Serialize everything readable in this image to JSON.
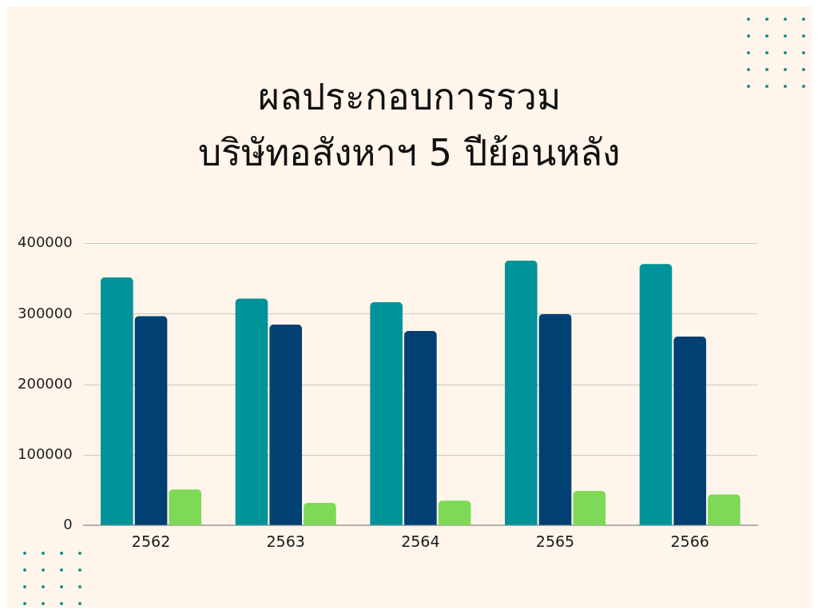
{
  "chart_data": {
    "type": "bar",
    "title": "ผลประกอบการรวม\nบริษัทอสังหาฯ 5 ปีย้อนหลัง",
    "categories": [
      "2562",
      "2563",
      "2564",
      "2565",
      "2566"
    ],
    "series": [
      {
        "color": "#00939a",
        "values": [
          352000,
          322000,
          317000,
          376000,
          371000
        ]
      },
      {
        "color": "#004073",
        "values": [
          297000,
          285000,
          276000,
          300000,
          268000
        ]
      },
      {
        "color": "#7ed957",
        "values": [
          51000,
          32000,
          35000,
          49000,
          44000
        ]
      }
    ],
    "ylim": [
      0,
      400000
    ],
    "yticks": [
      0,
      100000,
      200000,
      300000,
      400000
    ],
    "grid": "y",
    "legend": false
  }
}
